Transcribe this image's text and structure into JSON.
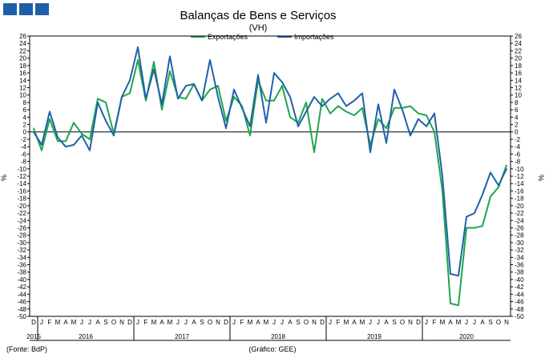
{
  "logo": {
    "color": "#1f5ea8"
  },
  "chart_data": {
    "type": "line",
    "title": "Balanças de Bens e Serviços",
    "subtitle": "(VH)",
    "ylabel_left": "%",
    "ylabel_right": "%",
    "ylim": [
      -50,
      26
    ],
    "y_ticks": [
      26,
      24,
      22,
      20,
      18,
      16,
      14,
      12,
      10,
      8,
      6,
      4,
      2,
      0,
      -2,
      -4,
      -6,
      -8,
      -10,
      -12,
      -14,
      -16,
      -18,
      -20,
      -22,
      -24,
      -26,
      -28,
      -30,
      -32,
      -34,
      -36,
      -38,
      -40,
      -42,
      -44,
      -46,
      -48,
      -50
    ],
    "grid": false,
    "legend_position": "top-center",
    "x": [
      "D",
      "J",
      "F",
      "M",
      "A",
      "M",
      "J",
      "J",
      "A",
      "S",
      "O",
      "N",
      "D",
      "J",
      "F",
      "M",
      "A",
      "M",
      "J",
      "J",
      "A",
      "S",
      "O",
      "N",
      "D",
      "J",
      "F",
      "M",
      "A",
      "M",
      "J",
      "J",
      "A",
      "S",
      "O",
      "N",
      "D",
      "J",
      "F",
      "M",
      "A",
      "M",
      "J",
      "J",
      "A",
      "S",
      "O",
      "N",
      "D",
      "J",
      "F",
      "M",
      "A",
      "M",
      "J",
      "J",
      "A",
      "S",
      "O",
      "N"
    ],
    "years": [
      "2015",
      "2016",
      "2017",
      "2018",
      "2019",
      "2020"
    ],
    "source_text": "(Fonte: BdP)",
    "graph_text": "(Gráfico: GEE)",
    "series": [
      {
        "name": "Exportações",
        "color": "#1fa64a",
        "values": [
          1,
          -5,
          3.5,
          -2.5,
          -2.5,
          2.5,
          -0.5,
          -2,
          9,
          8,
          -0.5,
          9.5,
          10.5,
          19.5,
          8.5,
          19,
          6,
          16.5,
          9.5,
          9,
          13,
          8.5,
          11.5,
          12.5,
          3,
          9.5,
          7,
          -1,
          14,
          8.5,
          8.5,
          12.5,
          4,
          2.5,
          8,
          -5.5,
          9,
          5,
          7,
          5.5,
          4.5,
          6.5,
          -3.5,
          3.5,
          1,
          6.5,
          6.5,
          7,
          5,
          4.5,
          0,
          -16,
          -46.5,
          -47,
          -26,
          -26,
          -25.5,
          -17.5,
          -15,
          -9
        ]
      },
      {
        "name": "Importações",
        "color": "#1f62a8",
        "values": [
          0,
          -3.5,
          5.5,
          -1.5,
          -4,
          -3.5,
          -1,
          -5,
          8,
          3,
          -1,
          9.5,
          14,
          23,
          9,
          17,
          7.5,
          20.5,
          9,
          12.5,
          13,
          8.5,
          19.5,
          9.5,
          1,
          11.5,
          6.5,
          1.5,
          15.5,
          2.5,
          16,
          13.5,
          9.5,
          1.5,
          5.5,
          9.5,
          7,
          9,
          10.5,
          7,
          8.5,
          10.5,
          -5.5,
          7.5,
          -3,
          11.5,
          6,
          -1,
          3.5,
          1.5,
          5,
          -12,
          -38.5,
          -39,
          -23,
          -22,
          -17,
          -11,
          -14.5,
          -10
        ]
      }
    ]
  }
}
